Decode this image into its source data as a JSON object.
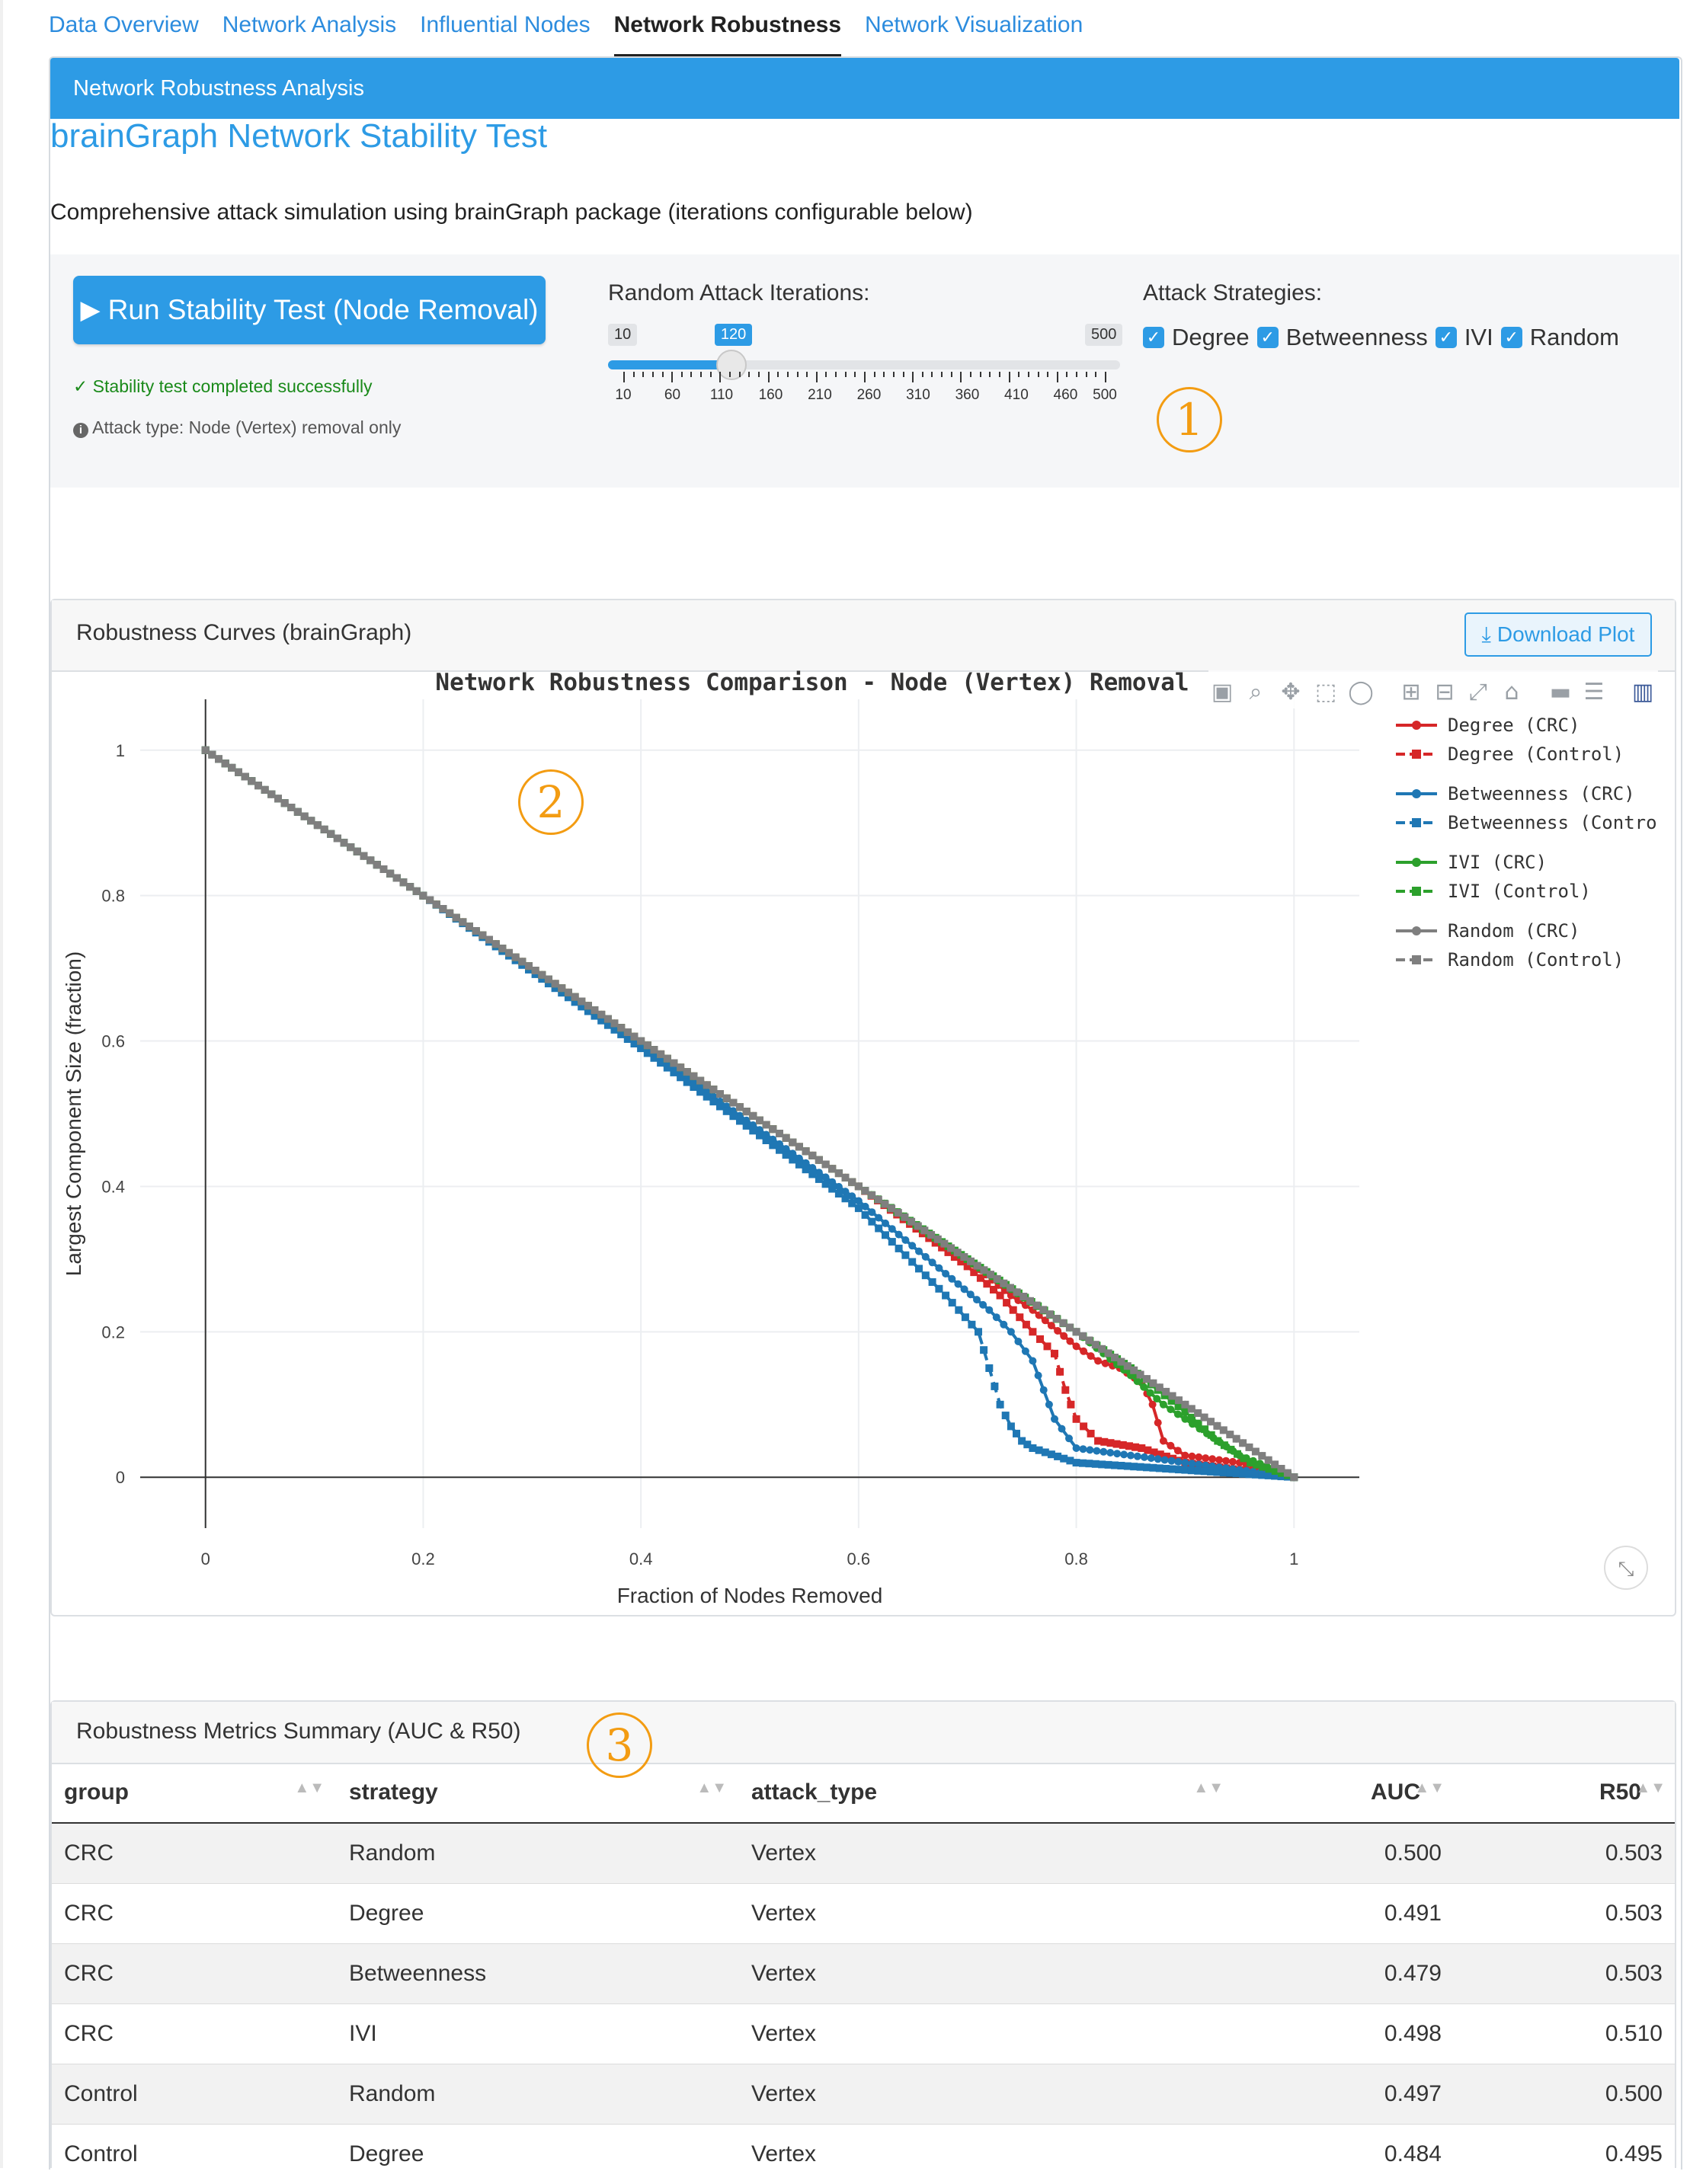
{
  "tabs": [
    "Data Overview",
    "Network Analysis",
    "Influential Nodes",
    "Network Robustness",
    "Network Visualization"
  ],
  "active_tab": "Network Robustness",
  "panel_header": "Network Robustness Analysis",
  "main_title": "brainGraph Network Stability Test",
  "subtitle": "Comprehensive attack simulation using brainGraph package (iterations configurable below)",
  "run_button": "Run Stability Test (Node Removal)",
  "status_ok": "Stability test completed successfully",
  "status_note": "Attack type: Node (Vertex) removal only",
  "slider": {
    "label": "Random Attack Iterations:",
    "min": 10,
    "max": 500,
    "value": 120,
    "min_label": "10",
    "max_label": "500",
    "value_label": "120",
    "tick_labels": [
      "10",
      "60",
      "110",
      "160",
      "210",
      "260",
      "310",
      "360",
      "410",
      "460",
      "500"
    ]
  },
  "strategies": {
    "label": "Attack Strategies:",
    "items": [
      {
        "label": "Degree",
        "checked": true
      },
      {
        "label": "Betweenness",
        "checked": true
      },
      {
        "label": "IVI",
        "checked": true
      },
      {
        "label": "Random",
        "checked": true
      }
    ]
  },
  "annotations": [
    "1",
    "2",
    "3"
  ],
  "plot_card": {
    "title": "Robustness Curves (brainGraph)",
    "download_label": "Download Plot",
    "toolbar_icons": [
      "camera-icon",
      "zoom-icon",
      "pan-icon",
      "box-select-icon",
      "lasso-icon",
      "zoom-in-icon",
      "zoom-out-icon",
      "autoscale-icon",
      "home-icon",
      "spike-lines-icon",
      "compare-hover-icon",
      "plotly-logo-icon"
    ]
  },
  "chart_data": {
    "type": "line",
    "title": "Network Robustness Comparison - Node (Vertex) Removal",
    "xlabel": "Fraction of Nodes Removed",
    "ylabel": "Largest Component Size (fraction)",
    "xlim": [
      -0.06,
      1.06
    ],
    "ylim": [
      -0.07,
      1.07
    ],
    "xticks": [
      0,
      0.2,
      0.4,
      0.6,
      0.8,
      1
    ],
    "yticks": [
      0,
      0.2,
      0.4,
      0.6,
      0.8,
      1
    ],
    "xtick_labels": [
      "0",
      "0.2",
      "0.4",
      "0.6",
      "0.8",
      "1"
    ],
    "ytick_labels": [
      "0",
      "0.2",
      "0.4",
      "0.6",
      "0.8",
      "1"
    ],
    "grid": true,
    "legend_position": "right",
    "series": [
      {
        "name": "Degree (CRC)",
        "color": "#d62728",
        "marker": "circle",
        "dash": "solid",
        "x": [
          0,
          0.2,
          0.4,
          0.6,
          0.7,
          0.74,
          0.76,
          0.8,
          0.82,
          0.84,
          0.86,
          0.87,
          0.88,
          0.9,
          0.95,
          1.0
        ],
        "y": [
          1,
          0.8,
          0.6,
          0.4,
          0.3,
          0.25,
          0.23,
          0.18,
          0.16,
          0.15,
          0.13,
          0.1,
          0.05,
          0.03,
          0.02,
          0
        ]
      },
      {
        "name": "Degree (Control)",
        "color": "#d62728",
        "marker": "square",
        "dash": "dash",
        "x": [
          0,
          0.2,
          0.4,
          0.6,
          0.7,
          0.73,
          0.76,
          0.78,
          0.79,
          0.8,
          0.82,
          0.86,
          0.9,
          0.95,
          1.0
        ],
        "y": [
          1,
          0.8,
          0.6,
          0.4,
          0.29,
          0.25,
          0.2,
          0.17,
          0.12,
          0.08,
          0.05,
          0.04,
          0.02,
          0.01,
          0
        ]
      },
      {
        "name": "Betweenness (CRC)",
        "color": "#1f77b4",
        "marker": "circle",
        "dash": "solid",
        "x": [
          0,
          0.2,
          0.4,
          0.6,
          0.68,
          0.72,
          0.74,
          0.76,
          0.77,
          0.78,
          0.8,
          0.85,
          0.9,
          0.95,
          1.0
        ],
        "y": [
          1,
          0.8,
          0.595,
          0.38,
          0.28,
          0.23,
          0.2,
          0.16,
          0.12,
          0.08,
          0.04,
          0.03,
          0.02,
          0.01,
          0
        ]
      },
      {
        "name": "Betweenness (Control)",
        "color": "#1f77b4",
        "marker": "square",
        "dash": "dash",
        "x": [
          0,
          0.2,
          0.4,
          0.6,
          0.68,
          0.71,
          0.72,
          0.73,
          0.74,
          0.75,
          0.76,
          0.8,
          0.9,
          1.0
        ],
        "y": [
          1,
          0.8,
          0.59,
          0.37,
          0.25,
          0.2,
          0.15,
          0.1,
          0.07,
          0.05,
          0.04,
          0.02,
          0.01,
          0
        ]
      },
      {
        "name": "IVI (CRC)",
        "color": "#2ca02c",
        "marker": "circle",
        "dash": "solid",
        "x": [
          0,
          0.2,
          0.4,
          0.6,
          0.7,
          0.8,
          0.85,
          0.88,
          0.9,
          0.92,
          0.95,
          1.0
        ],
        "y": [
          1,
          0.8,
          0.6,
          0.4,
          0.3,
          0.2,
          0.14,
          0.1,
          0.08,
          0.06,
          0.03,
          0
        ]
      },
      {
        "name": "IVI (Control)",
        "color": "#2ca02c",
        "marker": "square",
        "dash": "dash",
        "x": [
          0,
          0.2,
          0.4,
          0.6,
          0.7,
          0.8,
          0.85,
          0.9,
          0.93,
          0.96,
          1.0
        ],
        "y": [
          1,
          0.8,
          0.6,
          0.4,
          0.3,
          0.2,
          0.15,
          0.09,
          0.05,
          0.02,
          0
        ]
      },
      {
        "name": "Random (CRC)",
        "color": "#7f7f7f",
        "marker": "circle",
        "dash": "solid",
        "x": [
          0,
          0.2,
          0.4,
          0.6,
          0.8,
          0.9,
          1.0
        ],
        "y": [
          1,
          0.8,
          0.6,
          0.4,
          0.2,
          0.1,
          0
        ]
      },
      {
        "name": "Random (Control)",
        "color": "#7f7f7f",
        "marker": "square",
        "dash": "dash",
        "x": [
          0,
          0.2,
          0.4,
          0.6,
          0.8,
          0.9,
          1.0
        ],
        "y": [
          1,
          0.8,
          0.6,
          0.4,
          0.2,
          0.1,
          0
        ]
      }
    ]
  },
  "metrics_card": {
    "title": "Robustness Metrics Summary (AUC & R50)",
    "columns": [
      "group",
      "strategy",
      "attack_type",
      "AUC",
      "R50"
    ],
    "rows": [
      [
        "CRC",
        "Random",
        "Vertex",
        "0.500",
        "0.503"
      ],
      [
        "CRC",
        "Degree",
        "Vertex",
        "0.491",
        "0.503"
      ],
      [
        "CRC",
        "Betweenness",
        "Vertex",
        "0.479",
        "0.503"
      ],
      [
        "CRC",
        "IVI",
        "Vertex",
        "0.498",
        "0.510"
      ],
      [
        "Control",
        "Random",
        "Vertex",
        "0.497",
        "0.500"
      ],
      [
        "Control",
        "Degree",
        "Vertex",
        "0.484",
        "0.495"
      ]
    ]
  }
}
